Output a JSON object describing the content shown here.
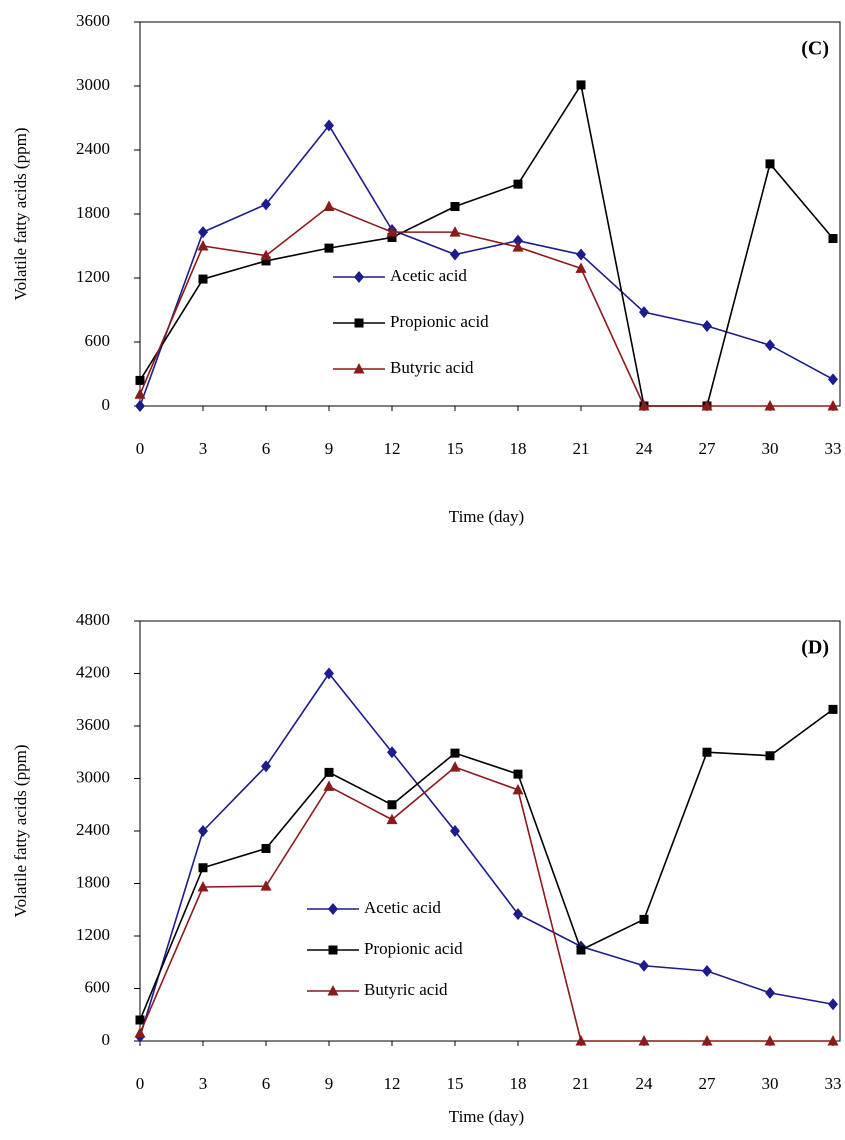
{
  "chart_data": [
    {
      "type": "line",
      "annotation": "(C)",
      "xlabel": "Time (day)",
      "ylabel": "Volatile fatty acids (ppm)",
      "x": [
        0,
        3,
        6,
        9,
        12,
        15,
        18,
        21,
        24,
        27,
        30,
        33
      ],
      "xlim": [
        0,
        33
      ],
      "xticks": [
        0,
        3,
        6,
        9,
        12,
        15,
        18,
        21,
        24,
        27,
        30,
        33
      ],
      "ylim": [
        0,
        3600
      ],
      "yticks": [
        0,
        600,
        1200,
        1800,
        2400,
        3000,
        3600
      ],
      "legend": "center",
      "series": [
        {
          "name": "Acetic acid",
          "color": "#1c1c8c",
          "marker": "diamond",
          "values": [
            0,
            1630,
            1890,
            2630,
            1650,
            1420,
            1550,
            1420,
            880,
            750,
            570,
            250
          ]
        },
        {
          "name": "Propionic acid",
          "color": "#000000",
          "marker": "square",
          "values": [
            240,
            1190,
            1360,
            1480,
            1580,
            1870,
            2080,
            3010,
            0,
            0,
            2270,
            1570
          ]
        },
        {
          "name": "Butyric acid",
          "color": "#8b1a1a",
          "marker": "triangle",
          "values": [
            110,
            1500,
            1410,
            1870,
            1630,
            1630,
            1490,
            1290,
            0,
            0,
            0,
            0
          ]
        }
      ]
    },
    {
      "type": "line",
      "annotation": "(D)",
      "xlabel": "Time (day)",
      "ylabel": "Volatile fatty acids (ppm)",
      "x": [
        0,
        3,
        6,
        9,
        12,
        15,
        18,
        21,
        24,
        27,
        30,
        33
      ],
      "xlim": [
        0,
        33
      ],
      "xticks": [
        0,
        3,
        6,
        9,
        12,
        15,
        18,
        21,
        24,
        27,
        30,
        33
      ],
      "ylim": [
        0,
        4800
      ],
      "yticks": [
        0,
        600,
        1200,
        1800,
        2400,
        3000,
        3600,
        4200,
        4800
      ],
      "legend": "center",
      "series": [
        {
          "name": "Acetic acid",
          "color": "#1c1c8c",
          "marker": "diamond",
          "values": [
            50,
            2400,
            3140,
            4200,
            3300,
            2400,
            1450,
            1080,
            860,
            800,
            550,
            420
          ]
        },
        {
          "name": "Propionic acid",
          "color": "#000000",
          "marker": "square",
          "values": [
            240,
            1980,
            2200,
            3070,
            2700,
            3290,
            3050,
            1040,
            1390,
            3300,
            3260,
            3790
          ]
        },
        {
          "name": "Butyric acid",
          "color": "#8b1a1a",
          "marker": "triangle",
          "values": [
            90,
            1760,
            1770,
            2910,
            2530,
            3130,
            2870,
            0,
            0,
            0,
            0,
            0
          ]
        }
      ]
    }
  ]
}
